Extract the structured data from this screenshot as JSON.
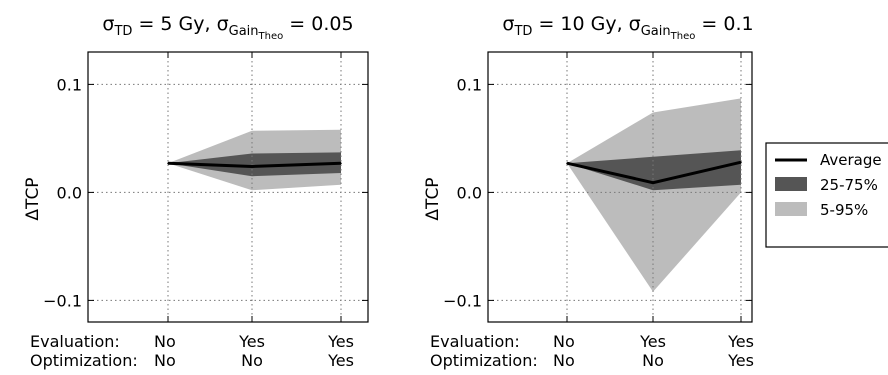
{
  "chart_data": [
    {
      "type": "area",
      "title": {
        "prefix": "σ",
        "sub1": "TD",
        "mid": " = 5 Gy, σ",
        "sub2": "Gain",
        "sub3": "Theo",
        "suffix": " = 0.05"
      },
      "ylabel": "ΔTCP",
      "ylim": [
        -0.12,
        0.13
      ],
      "yticks": [
        -0.1,
        0.0,
        0.1
      ],
      "ytick_labels": [
        "−0.1",
        "0.0",
        "0.1"
      ],
      "grid": true,
      "categories": [
        {
          "evaluation": "No",
          "optimization": "No"
        },
        {
          "evaluation": "Yes",
          "optimization": "No"
        },
        {
          "evaluation": "Yes",
          "optimization": "Yes"
        }
      ],
      "average": [
        0.027,
        0.024,
        0.027
      ],
      "band_25_75": {
        "low": [
          0.027,
          0.015,
          0.018
        ],
        "high": [
          0.027,
          0.036,
          0.037
        ]
      },
      "band_5_95": {
        "low": [
          0.027,
          0.002,
          0.007
        ],
        "high": [
          0.027,
          0.057,
          0.058
        ]
      }
    },
    {
      "type": "area",
      "title": {
        "prefix": "σ",
        "sub1": "TD",
        "mid": " = 10 Gy, σ",
        "sub2": "Gain",
        "sub3": "Theo",
        "suffix": " = 0.1"
      },
      "ylabel": "ΔTCP",
      "ylim": [
        -0.12,
        0.13
      ],
      "yticks": [
        -0.1,
        0.0,
        0.1
      ],
      "ytick_labels": [
        "−0.1",
        "0.0",
        "0.1"
      ],
      "grid": true,
      "categories": [
        {
          "evaluation": "No",
          "optimization": "No"
        },
        {
          "evaluation": "Yes",
          "optimization": "No"
        },
        {
          "evaluation": "Yes",
          "optimization": "Yes"
        }
      ],
      "average": [
        0.027,
        0.009,
        0.028
      ],
      "band_25_75": {
        "low": [
          0.027,
          0.002,
          0.007
        ],
        "high": [
          0.027,
          0.033,
          0.039
        ]
      },
      "band_5_95": {
        "low": [
          0.027,
          -0.092,
          0.0
        ],
        "high": [
          0.027,
          0.074,
          0.087
        ]
      }
    }
  ],
  "row_labels": {
    "evaluation": "Evaluation:",
    "optimization": "Optimization:"
  },
  "legend": {
    "placement": "right",
    "items": [
      {
        "label": "Average",
        "color": "#000000",
        "kind": "line"
      },
      {
        "label": "25-75%",
        "color": "#555555",
        "kind": "patch"
      },
      {
        "label": "5-95%",
        "color": "#bcbcbc",
        "kind": "patch"
      }
    ]
  },
  "colors": {
    "band_5_95": "#bcbcbc",
    "band_25_75": "#555555",
    "average": "#000000",
    "grid": "#777777"
  }
}
